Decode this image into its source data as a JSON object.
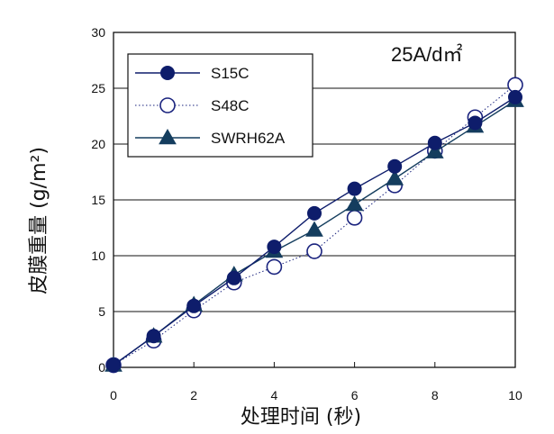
{
  "chart_data": {
    "type": "line",
    "title": "",
    "annotation": "25A/d㎡",
    "xlabel": "处理时间 (秒)",
    "ylabel": "皮膜重量 (g/m²)",
    "xlim": [
      0,
      10
    ],
    "ylim": [
      0,
      30
    ],
    "x_ticks": [
      0,
      2,
      4,
      6,
      8,
      10
    ],
    "y_ticks": [
      0,
      5,
      10,
      15,
      20,
      25,
      30
    ],
    "grid": "horizontal",
    "legend_position": "top-left",
    "series": [
      {
        "name": "S15C",
        "marker": "filled-circle",
        "line": "solid",
        "color": "#0e1d6b",
        "points": [
          [
            0,
            0.2
          ],
          [
            1,
            2.8
          ],
          [
            2,
            5.5
          ],
          [
            3,
            8.0
          ],
          [
            4,
            10.8
          ],
          [
            5,
            13.8
          ],
          [
            6,
            16.0
          ],
          [
            7,
            18.0
          ],
          [
            8,
            20.1
          ],
          [
            9,
            21.9
          ],
          [
            10,
            24.2
          ]
        ]
      },
      {
        "name": "S48C",
        "marker": "open-circle",
        "line": "dotted",
        "color": "#1a237e",
        "points": [
          [
            0,
            0.2
          ],
          [
            1,
            2.4
          ],
          [
            2,
            5.1
          ],
          [
            3,
            7.6
          ],
          [
            4,
            9.0
          ],
          [
            5,
            10.4
          ],
          [
            6,
            13.4
          ],
          [
            7,
            16.3
          ],
          [
            8,
            19.4
          ],
          [
            9,
            22.4
          ],
          [
            10,
            25.3
          ]
        ]
      },
      {
        "name": "SWRH62A",
        "marker": "filled-triangle",
        "line": "solid",
        "color": "#143d5e",
        "points": [
          [
            0,
            0.2
          ],
          [
            1,
            2.8
          ],
          [
            2,
            5.6
          ],
          [
            3,
            8.3
          ],
          [
            4,
            10.4
          ],
          [
            5,
            12.3
          ],
          [
            6,
            14.6
          ],
          [
            7,
            16.9
          ],
          [
            8,
            19.3
          ],
          [
            9,
            21.6
          ],
          [
            10,
            23.9
          ]
        ]
      }
    ]
  }
}
